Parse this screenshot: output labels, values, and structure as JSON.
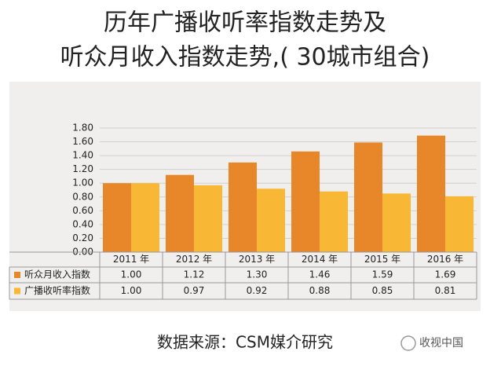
{
  "chart_data": {
    "type": "bar",
    "title": "历年广播收听率指数走势及",
    "subtitle": "听众月收入指数走势,( 30城市组合)",
    "categories": [
      "2011 年",
      "2012 年",
      "2013 年",
      "2014 年",
      "2015 年",
      "2016 年"
    ],
    "series": [
      {
        "name": "听众月收入指数",
        "color": "#e8862a",
        "values": [
          1.0,
          1.12,
          1.3,
          1.46,
          1.59,
          1.69
        ],
        "value_labels": [
          "1.00",
          "1.12",
          "1.30",
          "1.46",
          "1.59",
          "1.69"
        ]
      },
      {
        "name": "广播收听率指数",
        "color": "#f8b734",
        "values": [
          1.0,
          0.97,
          0.92,
          0.88,
          0.85,
          0.81
        ],
        "value_labels": [
          "1.00",
          "0.97",
          "0.92",
          "0.88",
          "0.85",
          "0.81"
        ]
      }
    ],
    "ylim": [
      0,
      1.8
    ],
    "yticks": [
      {
        "value": 0,
        "label": "0.00"
      },
      {
        "value": 0.2,
        "label": "0.20"
      },
      {
        "value": 0.4,
        "label": "0.40"
      },
      {
        "value": 0.6,
        "label": "0.60"
      },
      {
        "value": 0.8,
        "label": "0.80"
      },
      {
        "value": 1.0,
        "label": "1.00"
      },
      {
        "value": 1.2,
        "label": "1.20"
      },
      {
        "value": 1.4,
        "label": "1.40"
      },
      {
        "value": 1.6,
        "label": "1.60"
      },
      {
        "value": 1.8,
        "label": "1.80"
      }
    ],
    "source": "数据来源：CSM媒介研究",
    "watermark": "收视中国"
  }
}
